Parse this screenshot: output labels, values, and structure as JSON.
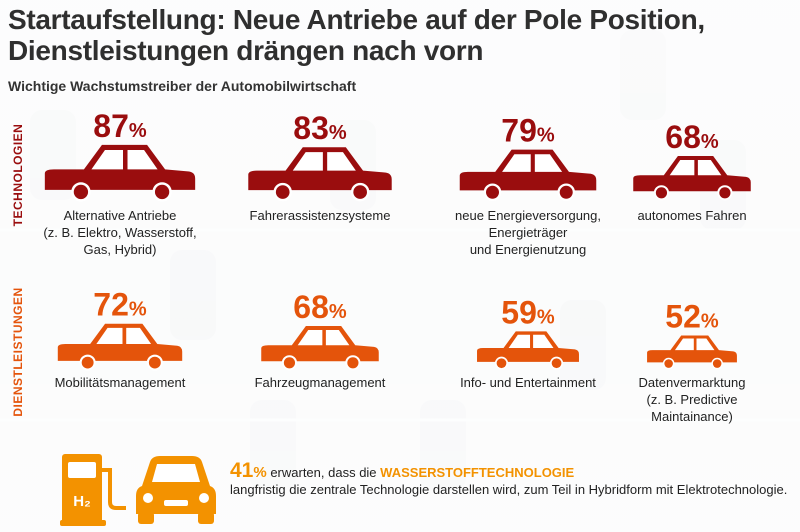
{
  "header": {
    "title_line1": "Startaufstellung: Neue Antriebe auf der Pole Position,",
    "title_line2": "Dienstleistungen drängen nach vorn",
    "subtitle": "Wichtige Wachstumstreiber der Automobilwirtschaft"
  },
  "groups": {
    "technologien": "TECHNOLOGIEN",
    "dienstleistungen": "DIENSTLEISTUNGEN"
  },
  "colors": {
    "technologien": "#9a0d0e",
    "dienstleistungen": "#e4540b",
    "highlight": "#f39200"
  },
  "chart_data": {
    "type": "bar",
    "unit": "%",
    "series": [
      {
        "group": "TECHNOLOGIEN",
        "categories": [
          [
            "Alternative Antriebe",
            "(z. B. Elektro, Wasserstoff,",
            "Gas, Hybrid)"
          ],
          [
            "Fahrerassistenzsysteme"
          ],
          [
            "neue Energieversorgung,",
            "Energieträger",
            "und Energienutzung"
          ],
          [
            "autonomes Fahren"
          ]
        ],
        "values": [
          87,
          83,
          79,
          68
        ]
      },
      {
        "group": "DIENSTLEISTUNGEN",
        "categories": [
          [
            "Mobilitätsmanagement"
          ],
          [
            "Fahrzeugmanagement"
          ],
          [
            "Info- und Entertainment"
          ],
          [
            "Datenvermarktung",
            "(z. B. Predictive",
            "Maintainance)"
          ]
        ],
        "values": [
          72,
          68,
          59,
          52
        ]
      }
    ]
  },
  "note": {
    "value": "41",
    "unit": "%",
    "text_1": " erwarten, dass die ",
    "highlight": "WASSERSTOFFTECHNOLOGIE",
    "text_2": "langfristig die zentrale Technologie darstellen wird, zum Teil in Hybridform mit Elektrotechnologie.",
    "icon_label": "H₂"
  }
}
